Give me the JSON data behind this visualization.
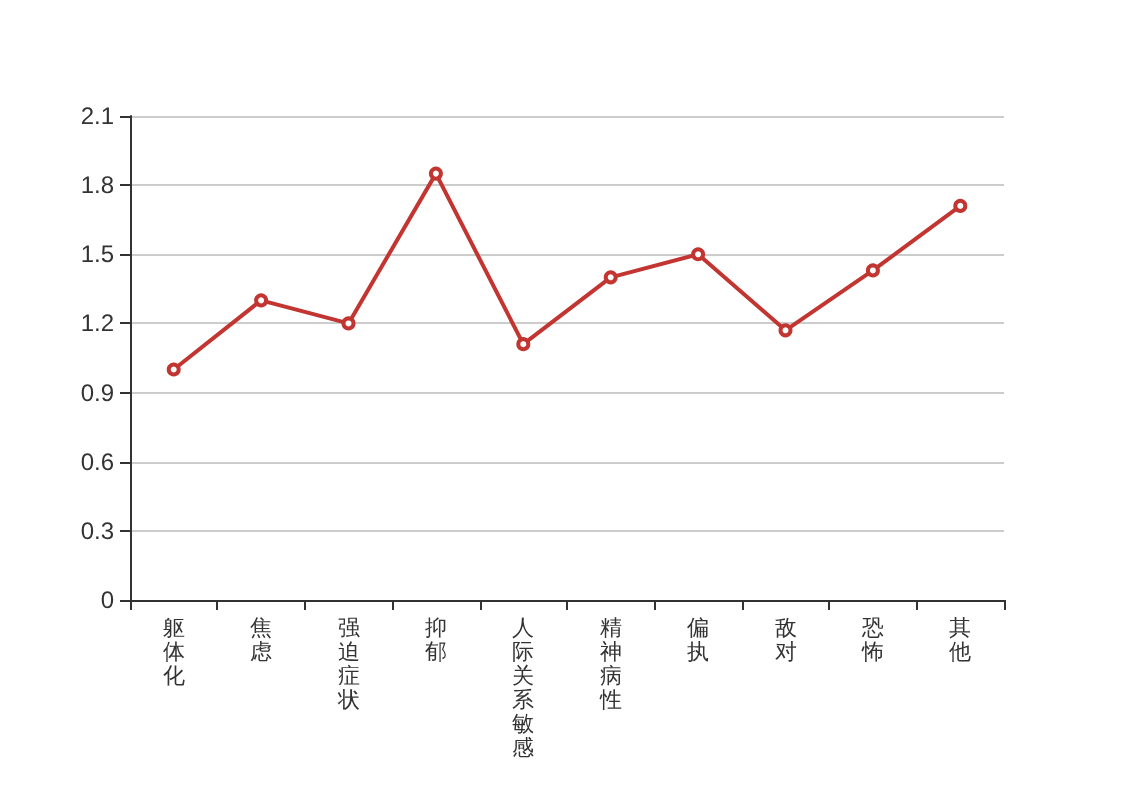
{
  "chart_data": {
    "type": "line",
    "categories": [
      "躯体化",
      "焦虑",
      "强迫症状",
      "抑郁",
      "人际关系敏感",
      "精神病性",
      "偏执",
      "敌对",
      "恐怖",
      "其他"
    ],
    "series": [
      {
        "color": "#c23531",
        "values": [
          1.0,
          1.3,
          1.2,
          1.85,
          1.11,
          1.4,
          1.5,
          1.17,
          1.43,
          1.71
        ]
      }
    ],
    "ylim": [
      0,
      2.1
    ],
    "yticks": [
      0,
      0.3,
      0.6,
      0.9,
      1.2,
      1.5,
      1.8,
      2.1
    ],
    "grid": "y",
    "marker": "circle",
    "line_style": "solid"
  }
}
